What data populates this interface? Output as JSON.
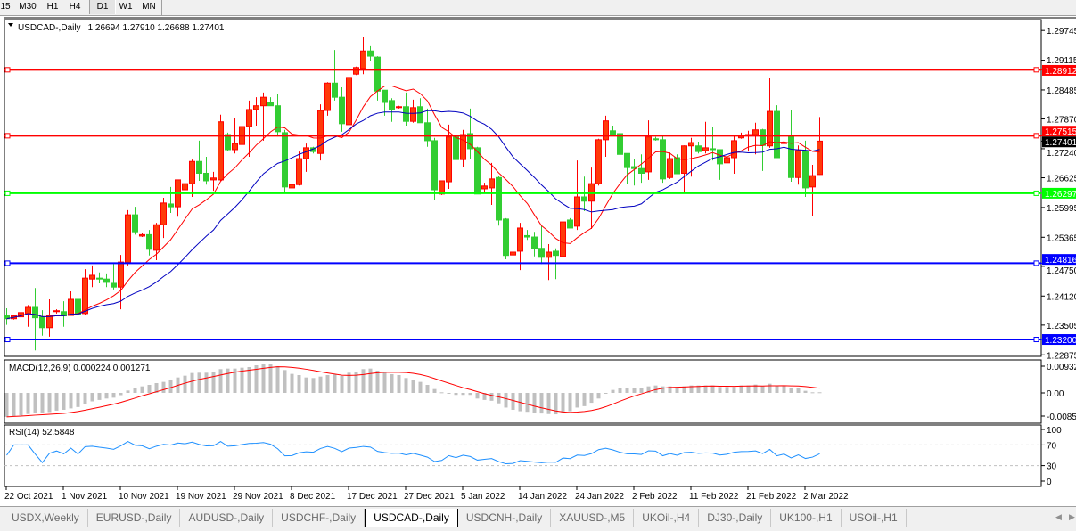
{
  "toolbar": {
    "timeframes": [
      {
        "label": "15",
        "active": false
      },
      {
        "label": "M30",
        "active": false
      },
      {
        "label": "H1",
        "active": false
      },
      {
        "label": "H4",
        "active": false
      },
      {
        "label": "D1",
        "active": true
      },
      {
        "label": "W1",
        "active": false
      },
      {
        "label": "MN",
        "active": false
      }
    ]
  },
  "chart": {
    "symbol_label": "USDCAD-,Daily",
    "ohlc_label": "1.26694 1.27910 1.26688 1.27401",
    "current_price": "1.27401",
    "colors": {
      "bull": "#ff0000",
      "bull_fill": "#ff3a0a",
      "bear": "#32cd32",
      "ma_fast": "#ff0000",
      "ma_slow": "#0000c0",
      "macd_hist": "#c0c0c0",
      "macd_signal": "#ff0000",
      "rsi": "#1e90ff"
    },
    "price_ticks": [
      "1.29745",
      "1.29115",
      "1.28485",
      "1.27870",
      "1.27240",
      "1.26625",
      "1.25995",
      "1.25365",
      "1.24750",
      "1.24120",
      "1.23505",
      "1.22875"
    ],
    "levels": [
      {
        "price": "1.28912",
        "color": "#ff0000"
      },
      {
        "price": "1.27515",
        "color": "#ff0000"
      },
      {
        "price": "1.26297",
        "color": "#00ff00"
      },
      {
        "price": "1.24816",
        "color": "#0000ff"
      },
      {
        "price": "1.23200",
        "color": "#0000ff"
      }
    ],
    "date_labels": [
      "22 Oct 2021",
      "1 Nov 2021",
      "10 Nov 2021",
      "19 Nov 2021",
      "29 Nov 2021",
      "8 Dec 2021",
      "17 Dec 2021",
      "27 Dec 2021",
      "5 Jan 2022",
      "14 Jan 2022",
      "24 Jan 2022",
      "2 Feb 2022",
      "11 Feb 2022",
      "21 Feb 2022",
      "2 Mar 2022"
    ]
  },
  "macd": {
    "label": "MACD(12,26,9) 0.000224 0.001271",
    "ticks": [
      "0.009327",
      "0.00",
      "-0.00852"
    ]
  },
  "rsi": {
    "label": "RSI(14) 52.5848",
    "ticks": [
      "100",
      "70",
      "30",
      "0"
    ]
  },
  "chart_data": {
    "type": "candlestick",
    "ylim": [
      1.22875,
      1.29745
    ],
    "ohlc": [
      [
        1.237,
        1.2386,
        1.2351,
        1.2364
      ],
      [
        1.2364,
        1.2373,
        1.2362,
        1.237
      ],
      [
        1.2368,
        1.2397,
        1.2335,
        1.2377
      ],
      [
        1.2375,
        1.2393,
        1.2347,
        1.2388
      ],
      [
        1.2388,
        1.2429,
        1.2297,
        1.2366
      ],
      [
        1.2368,
        1.2382,
        1.2328,
        1.2345
      ],
      [
        1.2345,
        1.2405,
        1.2326,
        1.2371
      ],
      [
        1.2379,
        1.2384,
        1.2375,
        1.2381
      ],
      [
        1.2379,
        1.2401,
        1.2347,
        1.237
      ],
      [
        1.2371,
        1.2422,
        1.237,
        1.2405
      ],
      [
        1.2405,
        1.2454,
        1.2373,
        1.2373
      ],
      [
        1.2375,
        1.2469,
        1.2373,
        1.245
      ],
      [
        1.2448,
        1.2477,
        1.2431,
        1.2456
      ],
      [
        1.245,
        1.2462,
        1.2439,
        1.2448
      ],
      [
        1.2448,
        1.246,
        1.2431,
        1.2441
      ],
      [
        1.2439,
        1.248,
        1.2426,
        1.2431
      ],
      [
        1.2431,
        1.2499,
        1.2384,
        1.2484
      ],
      [
        1.2483,
        1.2594,
        1.2477,
        1.2584
      ],
      [
        1.2584,
        1.2601,
        1.2542,
        1.2548
      ],
      [
        1.2539,
        1.2546,
        1.2537,
        1.2542
      ],
      [
        1.2542,
        1.2552,
        1.2498,
        1.2511
      ],
      [
        1.2509,
        1.2567,
        1.2488,
        1.2563
      ],
      [
        1.2563,
        1.262,
        1.2535,
        1.2609
      ],
      [
        1.2607,
        1.2643,
        1.2588,
        1.2601
      ],
      [
        1.2601,
        1.2658,
        1.258,
        1.2658
      ],
      [
        1.2637,
        1.2652,
        1.2635,
        1.265
      ],
      [
        1.265,
        1.2701,
        1.2622,
        1.2697
      ],
      [
        1.2697,
        1.2741,
        1.2656,
        1.2672
      ],
      [
        1.2672,
        1.2707,
        1.2648,
        1.2656
      ],
      [
        1.2658,
        1.2675,
        1.2635,
        1.2662
      ],
      [
        1.2658,
        1.2796,
        1.2656,
        1.2781
      ],
      [
        1.2754,
        1.2758,
        1.272,
        1.2722
      ],
      [
        1.2722,
        1.279,
        1.2714,
        1.2735
      ],
      [
        1.2733,
        1.2833,
        1.2724,
        1.2771
      ],
      [
        1.2771,
        1.2826,
        1.2707,
        1.2807
      ],
      [
        1.2807,
        1.2833,
        1.2773,
        1.2815
      ],
      [
        1.2815,
        1.2843,
        1.2741,
        1.2833
      ],
      [
        1.2822,
        1.2833,
        1.2815,
        1.2815
      ],
      [
        1.2815,
        1.2839,
        1.275,
        1.276
      ],
      [
        1.2758,
        1.2764,
        1.263,
        1.2643
      ],
      [
        1.2641,
        1.2663,
        1.2603,
        1.2648
      ],
      [
        1.2648,
        1.2718,
        1.2646,
        1.2703
      ],
      [
        1.2703,
        1.2735,
        1.2675,
        1.2726
      ],
      [
        1.2726,
        1.2728,
        1.2714,
        1.2718
      ],
      [
        1.2714,
        1.2818,
        1.2699,
        1.2805
      ],
      [
        1.2805,
        1.2865,
        1.2794,
        1.2863
      ],
      [
        1.2863,
        1.2933,
        1.2826,
        1.2833
      ],
      [
        1.2833,
        1.2854,
        1.276,
        1.2777
      ],
      [
        1.2775,
        1.2877,
        1.2773,
        1.2875
      ],
      [
        1.2882,
        1.2898,
        1.288,
        1.2896
      ],
      [
        1.2894,
        1.296,
        1.2882,
        1.2931
      ],
      [
        1.2931,
        1.2941,
        1.2909,
        1.292
      ],
      [
        1.2918,
        1.292,
        1.2826,
        1.2846
      ],
      [
        1.2848,
        1.2848,
        1.2794,
        1.2822
      ],
      [
        1.2826,
        1.2831,
        1.2781,
        1.2807
      ],
      [
        1.2811,
        1.2815,
        1.2809,
        1.2813
      ],
      [
        1.2813,
        1.2843,
        1.2773,
        1.2782
      ],
      [
        1.2782,
        1.2828,
        1.2779,
        1.2811
      ],
      [
        1.2813,
        1.2831,
        1.2779,
        1.2779
      ],
      [
        1.2779,
        1.2809,
        1.2728,
        1.2741
      ],
      [
        1.2741,
        1.2747,
        1.2615,
        1.2637
      ],
      [
        1.2628,
        1.2656,
        1.2626,
        1.2656
      ],
      [
        1.2654,
        1.2775,
        1.2639,
        1.2749
      ],
      [
        1.2749,
        1.2762,
        1.2662,
        1.2701
      ],
      [
        1.2701,
        1.2764,
        1.2686,
        1.2754
      ],
      [
        1.2756,
        1.2809,
        1.2703,
        1.2724
      ],
      [
        1.2726,
        1.2728,
        1.2628,
        1.2628
      ],
      [
        1.2639,
        1.2652,
        1.263,
        1.2645
      ],
      [
        1.2641,
        1.2694,
        1.2605,
        1.266
      ],
      [
        1.2663,
        1.2667,
        1.2561,
        1.2573
      ],
      [
        1.2575,
        1.2577,
        1.249,
        1.2498
      ],
      [
        1.2499,
        1.2518,
        1.2448,
        1.2505
      ],
      [
        1.2507,
        1.2567,
        1.2467,
        1.2556
      ],
      [
        1.254,
        1.2552,
        1.2531,
        1.2537
      ],
      [
        1.2537,
        1.2548,
        1.2496,
        1.2513
      ],
      [
        1.2513,
        1.256,
        1.248,
        1.2494
      ],
      [
        1.2494,
        1.2522,
        1.2446,
        1.2505
      ],
      [
        1.2507,
        1.2513,
        1.2448,
        1.2498
      ],
      [
        1.2496,
        1.2571,
        1.2496,
        1.2569
      ],
      [
        1.2573,
        1.2577,
        1.2556,
        1.2556
      ],
      [
        1.256,
        1.2699,
        1.2552,
        1.2622
      ],
      [
        1.2622,
        1.2665,
        1.2592,
        1.2613
      ],
      [
        1.2613,
        1.2684,
        1.2554,
        1.265
      ],
      [
        1.265,
        1.2745,
        1.2646,
        1.2743
      ],
      [
        1.2743,
        1.2794,
        1.2707,
        1.2783
      ],
      [
        1.2762,
        1.2773,
        1.2754,
        1.2754
      ],
      [
        1.2756,
        1.2771,
        1.2677,
        1.2712
      ],
      [
        1.2714,
        1.2714,
        1.265,
        1.2684
      ],
      [
        1.2686,
        1.2703,
        1.2646,
        1.2682
      ],
      [
        1.2682,
        1.2712,
        1.2652,
        1.2672
      ],
      [
        1.2675,
        1.2784,
        1.2658,
        1.2749
      ],
      [
        1.2745,
        1.2749,
        1.2741,
        1.2743
      ],
      [
        1.2743,
        1.2752,
        1.2652,
        1.266
      ],
      [
        1.2663,
        1.2716,
        1.266,
        1.2703
      ],
      [
        1.2705,
        1.2712,
        1.2671,
        1.2671
      ],
      [
        1.2672,
        1.2731,
        1.2632,
        1.273
      ],
      [
        1.273,
        1.2747,
        1.2665,
        1.2737
      ],
      [
        1.273,
        1.2739,
        1.2714,
        1.2718
      ],
      [
        1.272,
        1.2781,
        1.2714,
        1.2726
      ],
      [
        1.2724,
        1.2771,
        1.2699,
        1.2722
      ],
      [
        1.2722,
        1.2722,
        1.2658,
        1.2692
      ],
      [
        1.2694,
        1.2731,
        1.2671,
        1.2705
      ],
      [
        1.2705,
        1.2752,
        1.2671,
        1.2741
      ],
      [
        1.2747,
        1.2758,
        1.2745,
        1.2752
      ],
      [
        1.2752,
        1.2762,
        1.2718,
        1.2754
      ],
      [
        1.2754,
        1.2779,
        1.2712,
        1.2764
      ],
      [
        1.2764,
        1.2766,
        1.2677,
        1.2731
      ],
      [
        1.273,
        1.2873,
        1.2726,
        1.2803
      ],
      [
        1.2803,
        1.2816,
        1.2705,
        1.2705
      ],
      [
        1.2735,
        1.2756,
        1.2733,
        1.2737
      ],
      [
        1.2752,
        1.2807,
        1.2654,
        1.2663
      ],
      [
        1.2663,
        1.2731,
        1.2648,
        1.272
      ],
      [
        1.272,
        1.2741,
        1.2622,
        1.2641
      ],
      [
        1.2643,
        1.269,
        1.2582,
        1.2667
      ],
      [
        1.26694,
        1.2791,
        1.26688,
        1.27401
      ]
    ],
    "macd_hist": [
      -0.00881,
      -0.0085,
      -0.0083,
      -0.00778,
      -0.00747,
      -0.00726,
      -0.00705,
      -0.00653,
      -0.00622,
      -0.0057,
      -0.00519,
      -0.00394,
      -0.00311,
      -0.00259,
      -0.00207,
      -0.00176,
      -0.00083,
      0.00083,
      0.00156,
      0.00228,
      0.0028,
      0.00342,
      0.00384,
      0.00446,
      0.00539,
      0.00601,
      0.00695,
      0.00705,
      0.00705,
      0.00726,
      0.0083,
      0.0085,
      0.0085,
      0.00881,
      0.00902,
      0.00964,
      0.01006,
      0.01006,
      0.00933,
      0.00798,
      0.00664,
      0.00622,
      0.00539,
      0.00519,
      0.0057,
      0.00622,
      0.00643,
      0.00591,
      0.00705,
      0.00747,
      0.0083,
      0.0085,
      0.00778,
      0.00705,
      0.00653,
      0.00622,
      0.00519,
      0.00436,
      0.00384,
      0.0028,
      0.00135,
      0.00021,
      0,
      -0.00073,
      -0.00073,
      -0.00073,
      -0.00207,
      -0.00259,
      -0.0029,
      -0.00384,
      -0.00539,
      -0.00622,
      -0.00674,
      -0.00695,
      -0.00726,
      -0.00757,
      -0.00778,
      -0.00788,
      -0.00726,
      -0.00674,
      -0.00539,
      -0.00487,
      -0.00363,
      -0.00207,
      -0.00021,
      0.00104,
      0.00166,
      0.00166,
      0.00166,
      0.00166,
      0.00228,
      0.00259,
      0.00228,
      0.00228,
      0.00187,
      0.00228,
      0.00259,
      0.00259,
      0.00259,
      0.00259,
      0.00207,
      0.00207,
      0.00207,
      0.00259,
      0.00259,
      0.0029,
      0.00239,
      0.00321,
      0.00239,
      0.00239,
      0.00166,
      0.00166,
      0.00073,
      0.00021,
      0.000224
    ],
    "macd_range": [
      -0.00852,
      0.009327
    ],
    "rsi_range": [
      0,
      100
    ],
    "rsi_levels": [
      70,
      30
    ]
  },
  "tabs": [
    {
      "label": "USDX,Weekly",
      "active": false
    },
    {
      "label": "EURUSD-,Daily",
      "active": false
    },
    {
      "label": "AUDUSD-,Daily",
      "active": false
    },
    {
      "label": "USDCHF-,Daily",
      "active": false
    },
    {
      "label": "USDCAD-,Daily",
      "active": true
    },
    {
      "label": "USDCNH-,Daily",
      "active": false
    },
    {
      "label": "XAUUSD-,M5",
      "active": false
    },
    {
      "label": "UKOil-,H4",
      "active": false
    },
    {
      "label": "DJ30-,Daily",
      "active": false
    },
    {
      "label": "UK100-,H1",
      "active": false
    },
    {
      "label": "USOil-,H1",
      "active": false
    }
  ]
}
